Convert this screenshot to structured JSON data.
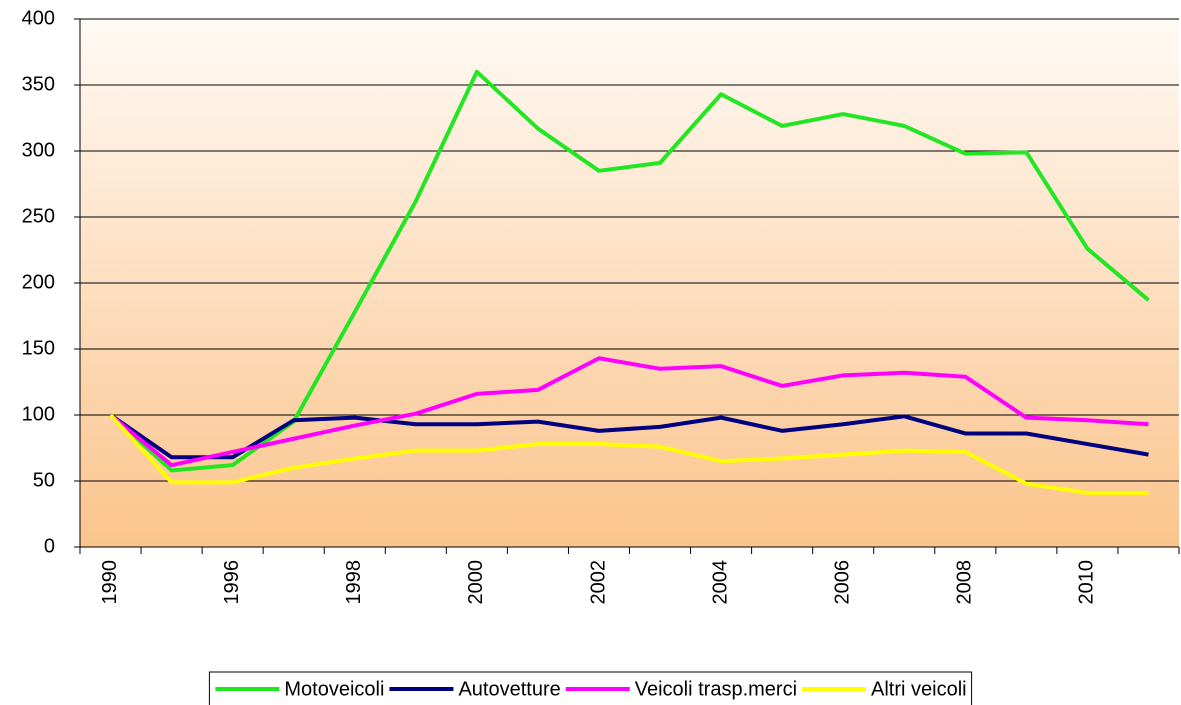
{
  "chart_data": {
    "type": "line",
    "categories": [
      "1990",
      null,
      "1996",
      null,
      "1998",
      null,
      "2000",
      null,
      "2002",
      null,
      "2004",
      null,
      "2006",
      null,
      "2008",
      null,
      "2010",
      null
    ],
    "series": [
      {
        "name": "Motoveicoli",
        "color": "#22e622",
        "values": [
          100,
          58,
          62,
          95,
          178,
          262,
          360,
          317,
          285,
          291,
          343,
          319,
          328,
          319,
          298,
          299,
          226,
          187
        ]
      },
      {
        "name": "Autovetture",
        "color": "#000080",
        "values": [
          100,
          68,
          68,
          96,
          98,
          93,
          93,
          95,
          88,
          91,
          98,
          88,
          93,
          99,
          86,
          86,
          78,
          70
        ]
      },
      {
        "name": "Veicoli trasp.merci",
        "color": "#ff00ff",
        "values": [
          100,
          62,
          72,
          82,
          92,
          101,
          116,
          119,
          143,
          135,
          137,
          122,
          130,
          132,
          129,
          98,
          96,
          93
        ]
      },
      {
        "name": "Altri veicoli",
        "color": "#ffff00",
        "values": [
          100,
          49,
          49,
          60,
          67,
          73,
          73,
          78,
          78,
          76,
          65,
          67,
          70,
          73,
          72,
          48,
          41,
          41
        ]
      }
    ],
    "ylim": [
      0,
      400
    ],
    "yticks": [
      0,
      50,
      100,
      150,
      200,
      250,
      300,
      350,
      400
    ],
    "grid": true,
    "legend": "bottom"
  }
}
